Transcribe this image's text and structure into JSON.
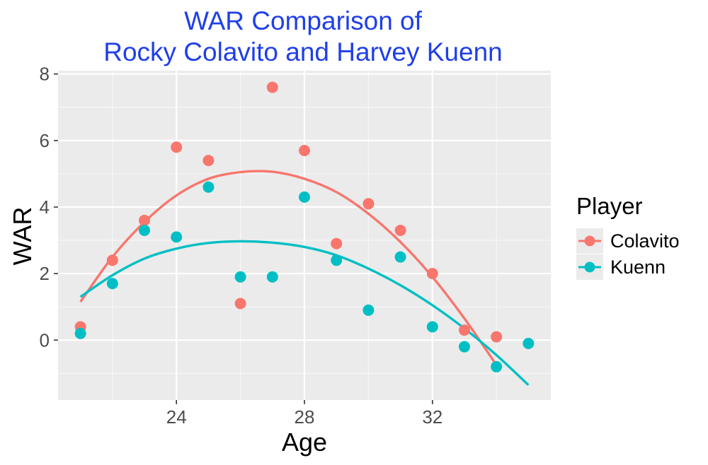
{
  "chart_data": {
    "type": "scatter",
    "title_lines": [
      "WAR Comparison of",
      "Rocky Colavito and Harvey Kuenn"
    ],
    "xlabel": "Age",
    "ylabel": "WAR",
    "xlim": [
      20.3,
      35.7
    ],
    "ylim": [
      -1.8,
      8.1
    ],
    "xticks": [
      24,
      28,
      32
    ],
    "xtick_labels": [
      "24",
      "28",
      "32"
    ],
    "yticks": [
      0,
      2,
      4,
      6,
      8
    ],
    "ytick_labels": [
      "0",
      "2",
      "4",
      "6",
      "8"
    ],
    "grid": true,
    "legend": {
      "title": "Player",
      "position": "right"
    },
    "series": [
      {
        "name": "Colavito",
        "color": "#F8766D",
        "points": [
          {
            "x": 21,
            "y": 0.4
          },
          {
            "x": 22,
            "y": 2.4
          },
          {
            "x": 23,
            "y": 3.6
          },
          {
            "x": 24,
            "y": 5.8
          },
          {
            "x": 25,
            "y": 5.4
          },
          {
            "x": 26,
            "y": 1.1
          },
          {
            "x": 27,
            "y": 7.6
          },
          {
            "x": 28,
            "y": 5.7
          },
          {
            "x": 29,
            "y": 2.9
          },
          {
            "x": 30,
            "y": 4.1
          },
          {
            "x": 31,
            "y": 3.3
          },
          {
            "x": 32,
            "y": 2.0
          },
          {
            "x": 33,
            "y": 0.3
          },
          {
            "x": 34,
            "y": 0.1
          }
        ],
        "fit_curve": {
          "x": [
            21,
            22,
            23,
            24,
            25,
            26,
            27,
            28,
            29,
            30,
            31,
            32,
            33,
            34
          ],
          "y": [
            1.15,
            2.5,
            3.55,
            4.35,
            4.85,
            5.05,
            5.06,
            4.85,
            4.45,
            3.8,
            2.95,
            1.9,
            0.65,
            -0.75
          ]
        }
      },
      {
        "name": "Kuenn",
        "color": "#00BFC4",
        "points": [
          {
            "x": 21,
            "y": 0.2
          },
          {
            "x": 22,
            "y": 1.7
          },
          {
            "x": 23,
            "y": 3.3
          },
          {
            "x": 24,
            "y": 3.1
          },
          {
            "x": 25,
            "y": 4.6
          },
          {
            "x": 26,
            "y": 1.9
          },
          {
            "x": 27,
            "y": 1.9
          },
          {
            "x": 28,
            "y": 4.3
          },
          {
            "x": 29,
            "y": 2.4
          },
          {
            "x": 30,
            "y": 0.9
          },
          {
            "x": 31,
            "y": 2.5
          },
          {
            "x": 32,
            "y": 0.4
          },
          {
            "x": 33,
            "y": -0.2
          },
          {
            "x": 34,
            "y": -0.8
          },
          {
            "x": 35,
            "y": -0.1
          }
        ],
        "fit_curve": {
          "x": [
            21,
            22,
            23,
            24,
            25,
            26,
            27,
            28,
            29,
            30,
            31,
            32,
            33,
            34,
            35
          ],
          "y": [
            1.3,
            1.95,
            2.45,
            2.75,
            2.92,
            2.97,
            2.93,
            2.8,
            2.55,
            2.15,
            1.65,
            1.05,
            0.35,
            -0.45,
            -1.35
          ]
        }
      }
    ]
  }
}
